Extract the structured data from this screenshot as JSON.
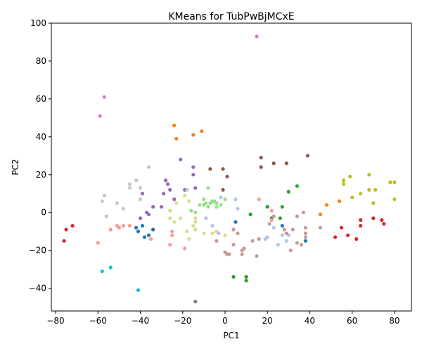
{
  "chart_data": {
    "type": "scatter",
    "title": "KMeans for TubPwBjMCxE",
    "xlabel": "PC1",
    "ylabel": "PC2",
    "xlim": [
      -82,
      88
    ],
    "ylim": [
      -52,
      100
    ],
    "xticks": [
      -80,
      -60,
      -40,
      -20,
      0,
      20,
      40,
      60,
      80
    ],
    "yticks": [
      -40,
      -20,
      0,
      20,
      40,
      60,
      80,
      100
    ],
    "grid": false,
    "legend": "none",
    "clusters": [
      {
        "color": "#d62728",
        "points": [
          [
            -76,
            -15
          ],
          [
            -75,
            -9
          ],
          [
            -72,
            -7
          ],
          [
            52,
            -13
          ],
          [
            55,
            -8
          ],
          [
            58,
            -12
          ],
          [
            62,
            -14
          ],
          [
            64,
            -7
          ],
          [
            64,
            -4
          ],
          [
            70,
            -3
          ],
          [
            74,
            -4
          ],
          [
            75,
            -6
          ]
        ]
      },
      {
        "color": "#ff7f0e",
        "points": [
          [
            -24,
            46
          ],
          [
            -23,
            39
          ],
          [
            -15,
            41
          ],
          [
            -11,
            43
          ],
          [
            45,
            -1
          ],
          [
            48,
            4
          ],
          [
            54,
            6
          ]
        ]
      },
      {
        "color": "#1f77b4",
        "points": [
          [
            -42,
            -8
          ],
          [
            -41,
            -10
          ],
          [
            -39,
            -7
          ],
          [
            -38,
            -13
          ],
          [
            -36,
            -12
          ],
          [
            -34,
            -9
          ],
          [
            5,
            -5
          ],
          [
            27,
            -7
          ],
          [
            38,
            -15
          ]
        ]
      },
      {
        "color": "#2ca02c",
        "points": [
          [
            4,
            -34
          ],
          [
            10,
            -34
          ],
          [
            10,
            -36
          ],
          [
            12,
            -1
          ],
          [
            20,
            3
          ],
          [
            22,
            -3
          ],
          [
            26,
            -3
          ],
          [
            27,
            3
          ],
          [
            30,
            11
          ],
          [
            34,
            14
          ]
        ]
      },
      {
        "color": "#9467bd",
        "points": [
          [
            -40,
            -3
          ],
          [
            -39,
            10
          ],
          [
            -37,
            0
          ],
          [
            -36,
            -1
          ],
          [
            -34,
            3
          ],
          [
            -30,
            3
          ],
          [
            -29,
            10
          ],
          [
            -28,
            17
          ],
          [
            -27,
            15
          ],
          [
            -26,
            12
          ],
          [
            -24,
            7
          ],
          [
            -21,
            28
          ],
          [
            -19,
            12
          ],
          [
            -15,
            24
          ],
          [
            -15,
            20
          ],
          [
            -14,
            13
          ]
        ]
      },
      {
        "color": "#8c564b",
        "points": [
          [
            -7,
            23
          ],
          [
            -1,
            23
          ],
          [
            -1,
            12
          ],
          [
            1,
            19
          ],
          [
            17,
            29
          ],
          [
            17,
            24
          ],
          [
            23,
            26
          ],
          [
            29,
            26
          ],
          [
            39,
            30
          ]
        ]
      },
      {
        "color": "#e377c2",
        "points": [
          [
            -59,
            51
          ],
          [
            -57,
            61
          ],
          [
            15,
            93
          ]
        ]
      },
      {
        "color": "#7f7f7f",
        "points": [
          [
            -14,
            -47
          ]
        ]
      },
      {
        "color": "#bcbd22",
        "points": [
          [
            56,
            17
          ],
          [
            56,
            15
          ],
          [
            59,
            19
          ],
          [
            60,
            8
          ],
          [
            64,
            10
          ],
          [
            68,
            12
          ],
          [
            68,
            20
          ],
          [
            71,
            12
          ],
          [
            78,
            16
          ],
          [
            80,
            16
          ],
          [
            80,
            7
          ],
          [
            70,
            5
          ]
        ]
      },
      {
        "color": "#17becf",
        "points": [
          [
            -58,
            -31
          ],
          [
            -54,
            -29
          ],
          [
            -41,
            -41
          ]
        ]
      },
      {
        "color": "#ff9896",
        "points": [
          [
            -60,
            -16
          ],
          [
            -54,
            -9
          ],
          [
            -51,
            -7
          ],
          [
            -50,
            -8
          ],
          [
            -48,
            -7
          ],
          [
            -45,
            -7
          ],
          [
            -35,
            -14
          ],
          [
            -26,
            -17
          ],
          [
            -25,
            -10
          ],
          [
            -25,
            -12
          ],
          [
            -19,
            -19
          ],
          [
            16,
            7
          ],
          [
            22,
            1
          ],
          [
            22,
            -4
          ]
        ]
      },
      {
        "color": "#c7c7c7",
        "points": [
          [
            -57,
            9
          ],
          [
            -58,
            6
          ],
          [
            -56,
            -2
          ],
          [
            -51,
            5
          ],
          [
            -48,
            2
          ],
          [
            -45,
            15
          ],
          [
            -45,
            13
          ],
          [
            -42,
            17
          ],
          [
            -40,
            7
          ],
          [
            -40,
            13
          ],
          [
            -36,
            24
          ],
          [
            -18,
            12
          ]
        ]
      },
      {
        "color": "#dbdb8d",
        "points": [
          [
            -26,
            1
          ],
          [
            -26,
            -3
          ],
          [
            -24,
            -5
          ],
          [
            -23,
            5
          ],
          [
            -21,
            -3
          ],
          [
            -19,
            9
          ],
          [
            -17,
            6
          ],
          [
            -18,
            -10
          ],
          [
            -17,
            -14
          ],
          [
            -15,
            -7
          ],
          [
            -14,
            -9
          ],
          [
            -14,
            -3
          ],
          [
            -14,
            -5
          ],
          [
            -10,
            -11
          ],
          [
            -6,
            -11
          ],
          [
            -4,
            -10
          ],
          [
            0,
            -12
          ]
        ]
      },
      {
        "color": "#98df8a",
        "points": [
          [
            -16,
            1
          ],
          [
            -14,
            0
          ],
          [
            -12,
            4
          ],
          [
            -10,
            4
          ],
          [
            -10,
            7
          ],
          [
            -9,
            5
          ],
          [
            -8,
            13
          ],
          [
            -8,
            3
          ],
          [
            -7,
            5
          ],
          [
            -6,
            6
          ],
          [
            -5,
            6
          ],
          [
            -4,
            3
          ],
          [
            -4,
            5
          ],
          [
            -2,
            4
          ],
          [
            0,
            7
          ]
        ]
      },
      {
        "color": "#aec7e8",
        "points": [
          [
            -9,
            -3
          ],
          [
            -6,
            -7
          ],
          [
            -3,
            -11
          ],
          [
            -2,
            8
          ],
          [
            4,
            -9
          ],
          [
            5,
            7
          ],
          [
            6,
            2
          ],
          [
            19,
            -14
          ],
          [
            20,
            -13
          ],
          [
            23,
            -8
          ],
          [
            25,
            -17
          ],
          [
            27,
            -12
          ],
          [
            29,
            -15
          ],
          [
            30,
            -12
          ]
        ]
      },
      {
        "color": "#c49c94",
        "points": [
          [
            -4,
            -15
          ],
          [
            0,
            -21
          ],
          [
            1,
            -22
          ],
          [
            2,
            -22
          ],
          [
            4,
            -9
          ],
          [
            4,
            -17
          ],
          [
            6,
            -11
          ],
          [
            8,
            -22
          ],
          [
            8,
            -20
          ],
          [
            9,
            -19
          ],
          [
            13,
            -15
          ],
          [
            15,
            -23
          ],
          [
            16,
            -14
          ],
          [
            21,
            -6
          ],
          [
            23,
            -2
          ],
          [
            28,
            -9
          ],
          [
            29,
            -11
          ],
          [
            31,
            -20
          ],
          [
            32,
            -9
          ],
          [
            34,
            -2
          ],
          [
            34,
            -16
          ],
          [
            36,
            -17
          ],
          [
            37,
            0
          ],
          [
            38,
            -8
          ],
          [
            38,
            -11
          ],
          [
            38,
            -13
          ],
          [
            45,
            -8
          ]
        ]
      }
    ]
  }
}
